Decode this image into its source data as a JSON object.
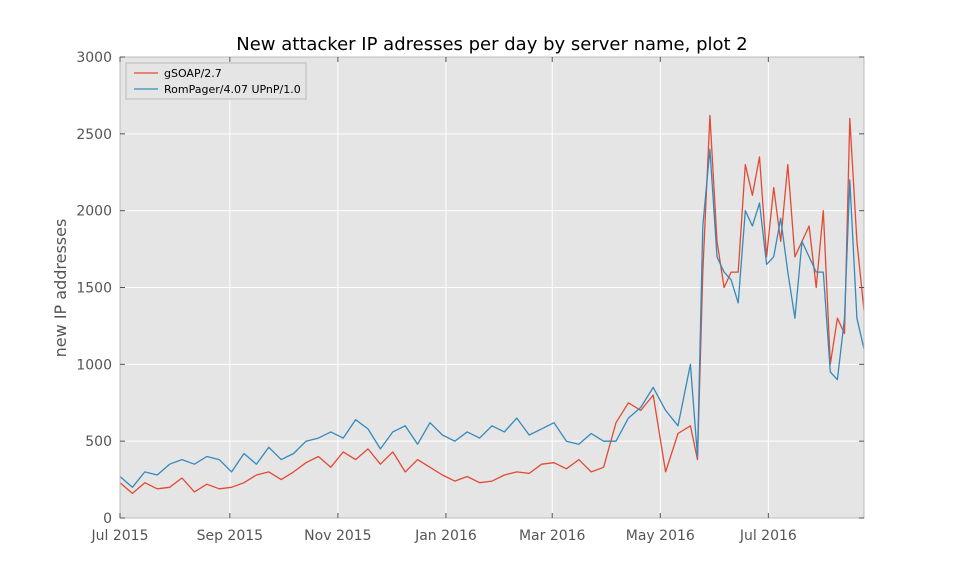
{
  "chart_data": {
    "type": "line",
    "title": "New attacker IP adresses per day by server name, plot 2",
    "xlabel": "",
    "ylabel": "new IP addresses",
    "xlim": [
      "2015-07-01",
      "2016-08-24"
    ],
    "ylim": [
      0,
      3000
    ],
    "grid": true,
    "legend_position": "top-left",
    "background": "#E5E5E5",
    "x_ticks": [
      {
        "date": "2015-07-01",
        "label": "Jul 2015"
      },
      {
        "date": "2015-09-01",
        "label": "Sep 2015"
      },
      {
        "date": "2015-11-01",
        "label": "Nov 2015"
      },
      {
        "date": "2016-01-01",
        "label": "Jan 2016"
      },
      {
        "date": "2016-03-01",
        "label": "Mar 2016"
      },
      {
        "date": "2016-05-01",
        "label": "May 2016"
      },
      {
        "date": "2016-07-01",
        "label": "Jul 2016"
      }
    ],
    "y_ticks": [
      {
        "value": 0,
        "label": "0"
      },
      {
        "value": 500,
        "label": "500"
      },
      {
        "value": 1000,
        "label": "1000"
      },
      {
        "value": 1500,
        "label": "1500"
      },
      {
        "value": 2000,
        "label": "2000"
      },
      {
        "value": 2500,
        "label": "2500"
      },
      {
        "value": 3000,
        "label": "3000"
      }
    ],
    "series": [
      {
        "name": "gSOAP/2.7",
        "color": "#E24A33",
        "x": [
          "2015-07-01",
          "2015-07-08",
          "2015-07-15",
          "2015-07-22",
          "2015-07-29",
          "2015-08-05",
          "2015-08-12",
          "2015-08-19",
          "2015-08-26",
          "2015-09-02",
          "2015-09-09",
          "2015-09-16",
          "2015-09-23",
          "2015-09-30",
          "2015-10-07",
          "2015-10-14",
          "2015-10-21",
          "2015-10-28",
          "2015-11-04",
          "2015-11-11",
          "2015-11-18",
          "2015-11-25",
          "2015-12-02",
          "2015-12-09",
          "2015-12-16",
          "2015-12-23",
          "2015-12-30",
          "2016-01-06",
          "2016-01-13",
          "2016-01-20",
          "2016-01-27",
          "2016-02-03",
          "2016-02-10",
          "2016-02-17",
          "2016-02-24",
          "2016-03-02",
          "2016-03-09",
          "2016-03-16",
          "2016-03-23",
          "2016-03-30",
          "2016-04-06",
          "2016-04-13",
          "2016-04-20",
          "2016-04-27",
          "2016-05-04",
          "2016-05-11",
          "2016-05-18",
          "2016-05-22",
          "2016-05-25",
          "2016-05-29",
          "2016-06-02",
          "2016-06-06",
          "2016-06-10",
          "2016-06-14",
          "2016-06-18",
          "2016-06-22",
          "2016-06-26",
          "2016-06-30",
          "2016-07-04",
          "2016-07-08",
          "2016-07-12",
          "2016-07-16",
          "2016-07-20",
          "2016-07-24",
          "2016-07-28",
          "2016-08-01",
          "2016-08-05",
          "2016-08-09",
          "2016-08-13",
          "2016-08-16",
          "2016-08-20",
          "2016-08-24"
        ],
        "values": [
          230,
          160,
          230,
          190,
          200,
          260,
          170,
          220,
          190,
          200,
          230,
          280,
          300,
          250,
          300,
          360,
          400,
          330,
          430,
          380,
          450,
          350,
          430,
          300,
          380,
          330,
          280,
          240,
          270,
          230,
          240,
          280,
          300,
          290,
          350,
          360,
          320,
          380,
          300,
          330,
          620,
          750,
          700,
          800,
          300,
          550,
          600,
          380,
          1600,
          2620,
          1800,
          1500,
          1600,
          1600,
          2300,
          2100,
          2350,
          1700,
          2150,
          1800,
          2300,
          1700,
          1800,
          1900,
          1500,
          2000,
          1000,
          1300,
          1200,
          2600,
          1800,
          1350
        ]
      },
      {
        "name": "RomPager/4.07 UPnP/1.0",
        "color": "#348ABD",
        "x": [
          "2015-07-01",
          "2015-07-08",
          "2015-07-15",
          "2015-07-22",
          "2015-07-29",
          "2015-08-05",
          "2015-08-12",
          "2015-08-19",
          "2015-08-26",
          "2015-09-02",
          "2015-09-09",
          "2015-09-16",
          "2015-09-23",
          "2015-09-30",
          "2015-10-07",
          "2015-10-14",
          "2015-10-21",
          "2015-10-28",
          "2015-11-04",
          "2015-11-11",
          "2015-11-18",
          "2015-11-25",
          "2015-12-02",
          "2015-12-09",
          "2015-12-16",
          "2015-12-23",
          "2015-12-30",
          "2016-01-06",
          "2016-01-13",
          "2016-01-20",
          "2016-01-27",
          "2016-02-03",
          "2016-02-10",
          "2016-02-17",
          "2016-02-24",
          "2016-03-02",
          "2016-03-09",
          "2016-03-16",
          "2016-03-23",
          "2016-03-30",
          "2016-04-06",
          "2016-04-13",
          "2016-04-20",
          "2016-04-27",
          "2016-05-04",
          "2016-05-11",
          "2016-05-18",
          "2016-05-22",
          "2016-05-25",
          "2016-05-29",
          "2016-06-02",
          "2016-06-06",
          "2016-06-10",
          "2016-06-14",
          "2016-06-18",
          "2016-06-22",
          "2016-06-26",
          "2016-06-30",
          "2016-07-04",
          "2016-07-08",
          "2016-07-12",
          "2016-07-16",
          "2016-07-20",
          "2016-07-24",
          "2016-07-28",
          "2016-08-01",
          "2016-08-05",
          "2016-08-09",
          "2016-08-13",
          "2016-08-16",
          "2016-08-20",
          "2016-08-24"
        ],
        "values": [
          270,
          200,
          300,
          280,
          350,
          380,
          350,
          400,
          380,
          300,
          420,
          350,
          460,
          380,
          420,
          500,
          520,
          560,
          520,
          640,
          580,
          450,
          560,
          600,
          480,
          620,
          540,
          500,
          560,
          520,
          600,
          560,
          650,
          540,
          580,
          620,
          500,
          480,
          550,
          500,
          500,
          650,
          720,
          850,
          700,
          600,
          1000,
          400,
          1900,
          2400,
          1700,
          1600,
          1550,
          1400,
          2000,
          1900,
          2050,
          1650,
          1700,
          1950,
          1600,
          1300,
          1800,
          1700,
          1600,
          1600,
          950,
          900,
          1300,
          2200,
          1300,
          1100
        ]
      }
    ]
  }
}
